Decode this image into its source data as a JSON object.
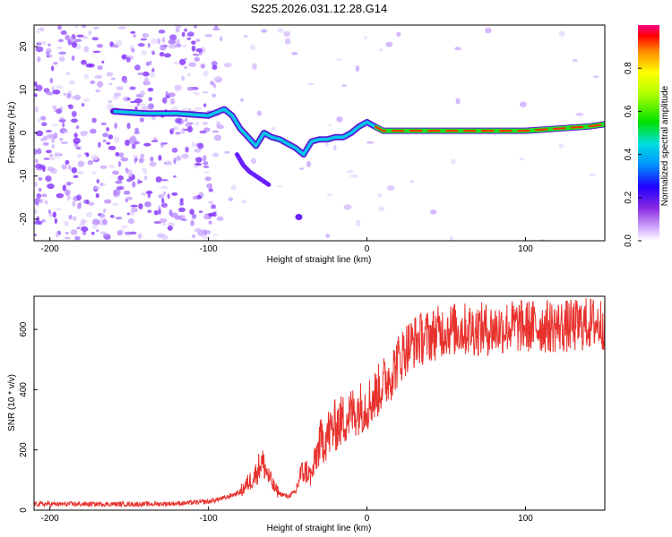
{
  "title": "S225.2026.031.12.28.G14",
  "chart_data": [
    {
      "type": "heatmap",
      "xlabel": "Height of straight line (km)",
      "ylabel": "Frequency (Hz)",
      "xlim": [
        -210,
        150
      ],
      "ylim": [
        -25,
        25
      ],
      "xticks": [
        -200,
        -100,
        0,
        100
      ],
      "yticks": [
        -20,
        -10,
        0,
        10,
        20
      ],
      "colorbar": {
        "label": "Normalized spectral amplitude",
        "range": [
          0,
          1
        ],
        "ticks": [
          0.0,
          0.2,
          0.4,
          0.6,
          0.8
        ]
      },
      "ridge": {
        "x": [
          -160,
          -140,
          -120,
          -100,
          -90,
          -85,
          -80,
          -75,
          -70,
          -65,
          -60,
          -55,
          -50,
          -45,
          -40,
          -35,
          -30,
          -25,
          -20,
          -15,
          -10,
          -5,
          0,
          5,
          10,
          15,
          20,
          40,
          60,
          80,
          100,
          120,
          140,
          150
        ],
        "y": [
          5,
          4.5,
          4.5,
          4,
          5.5,
          4,
          1,
          -1,
          -3,
          0,
          -1,
          -1.5,
          -2.5,
          -3.5,
          -5,
          -2,
          -1.5,
          -1.5,
          -1,
          -1,
          0,
          1.5,
          2.5,
          1.5,
          0.5,
          0.5,
          0.5,
          0.5,
          0.5,
          0.5,
          0.5,
          1,
          1.5,
          2
        ]
      }
    },
    {
      "type": "line",
      "xlabel": "Height of straight line (km)",
      "ylabel": "SNR (10 * v/v)",
      "xlim": [
        -210,
        150
      ],
      "ylim": [
        0,
        710
      ],
      "xticks": [
        -200,
        -100,
        0,
        100
      ],
      "yticks": [
        0,
        200,
        400,
        600
      ],
      "series": [
        {
          "name": "SNR",
          "color": "#e8322d",
          "x": [
            -210,
            -200,
            -180,
            -160,
            -140,
            -120,
            -100,
            -90,
            -80,
            -75,
            -70,
            -67,
            -65,
            -62,
            -58,
            -55,
            -50,
            -45,
            -42,
            -38,
            -35,
            -32,
            -30,
            -25,
            -20,
            -15,
            -10,
            -5,
            0,
            5,
            10,
            15,
            20,
            25,
            30,
            40,
            50,
            60,
            70,
            80,
            90,
            100,
            110,
            120,
            130,
            140,
            150
          ],
          "y": [
            20,
            20,
            20,
            20,
            20,
            22,
            28,
            40,
            60,
            90,
            120,
            160,
            150,
            110,
            70,
            55,
            45,
            60,
            120,
            130,
            110,
            180,
            220,
            250,
            280,
            300,
            320,
            340,
            350,
            380,
            420,
            450,
            500,
            540,
            560,
            580,
            600,
            600,
            600,
            600,
            610,
            610,
            610,
            610,
            610,
            620,
            620
          ]
        }
      ]
    }
  ]
}
